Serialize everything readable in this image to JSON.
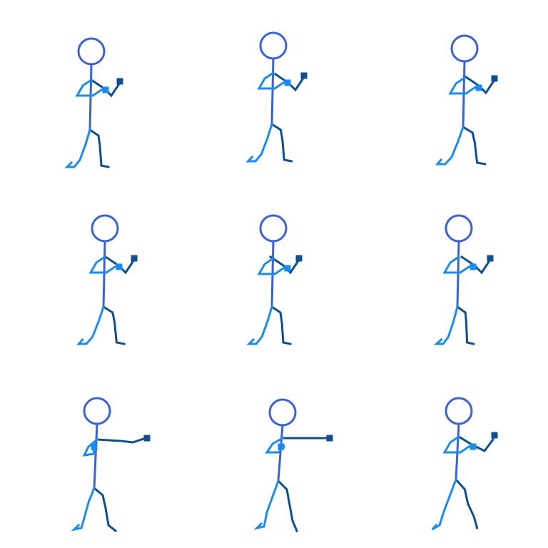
{
  "sprite_sheet": {
    "background": "#ffffff",
    "rows": 3,
    "cols": 3,
    "colors": {
      "head_torso": "#3a62d6",
      "near_limbs": "#1a8cf0",
      "far_limbs": "#0d4f8f"
    },
    "frames": [
      {
        "name": "guard-frame-1",
        "pose": "guard"
      },
      {
        "name": "guard-frame-2",
        "pose": "guard"
      },
      {
        "name": "guard-frame-3",
        "pose": "guard"
      },
      {
        "name": "guard-frame-4",
        "pose": "guard"
      },
      {
        "name": "guard-frame-5",
        "pose": "guard"
      },
      {
        "name": "guard-frame-6",
        "pose": "guard"
      },
      {
        "name": "punch-windup-frame",
        "pose": "punch-windup"
      },
      {
        "name": "punch-extend-frame",
        "pose": "punch-extended"
      },
      {
        "name": "punch-recover-frame",
        "pose": "punch-recover"
      }
    ]
  }
}
